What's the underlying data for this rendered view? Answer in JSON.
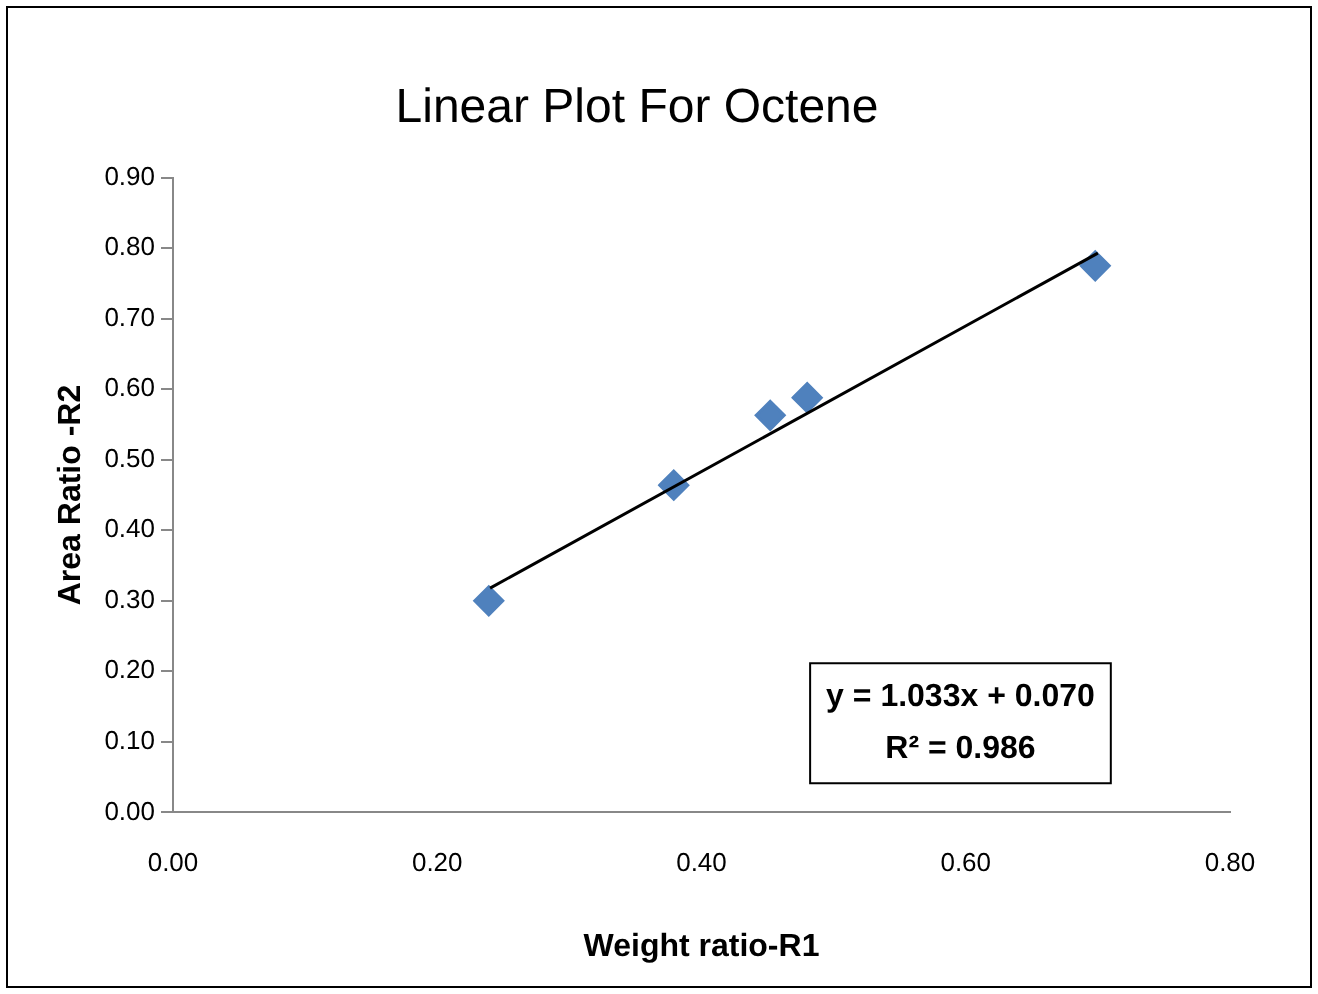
{
  "chart_data": {
    "type": "scatter",
    "title": "Linear Plot For Octene",
    "xlabel": "Weight ratio-R1",
    "ylabel": "Area Ratio -R2",
    "xlim": [
      0,
      0.8
    ],
    "xticks": [
      {
        "value": 0,
        "label": "0.00"
      },
      {
        "value": 0.2,
        "label": "0.20"
      },
      {
        "value": 0.4,
        "label": "0.40"
      },
      {
        "value": 0.6,
        "label": "0.60"
      },
      {
        "value": 0.8,
        "label": "0.80"
      }
    ],
    "ylim": [
      0,
      0.9
    ],
    "yticks": [
      {
        "value": 0,
        "label": "0.00"
      },
      {
        "value": 0.1,
        "label": "0.10"
      },
      {
        "value": 0.2,
        "label": "0.20"
      },
      {
        "value": 0.3,
        "label": "0.30"
      },
      {
        "value": 0.4,
        "label": "0.40"
      },
      {
        "value": 0.5,
        "label": "0.50"
      },
      {
        "value": 0.6,
        "label": "0.60"
      },
      {
        "value": 0.7,
        "label": "0.70"
      },
      {
        "value": 0.8,
        "label": "0.80"
      },
      {
        "value": 0.9,
        "label": "0.90"
      }
    ],
    "grid": false,
    "legend": false,
    "marker": "diamond",
    "series": [
      {
        "color": "#4f81bd",
        "x": [
          0.239,
          0.379,
          0.452,
          0.48,
          0.698
        ],
        "values": [
          0.3,
          0.464,
          0.563,
          0.588,
          0.775
        ]
      },
      {
        "type": "line",
        "color": "#000000",
        "x": [
          0.24,
          0.7
        ],
        "values": [
          0.318,
          0.793
        ],
        "marker": "none"
      }
    ],
    "annotations": [
      "y = 1.033x + 0.070",
      "R² = 0.986"
    ]
  }
}
